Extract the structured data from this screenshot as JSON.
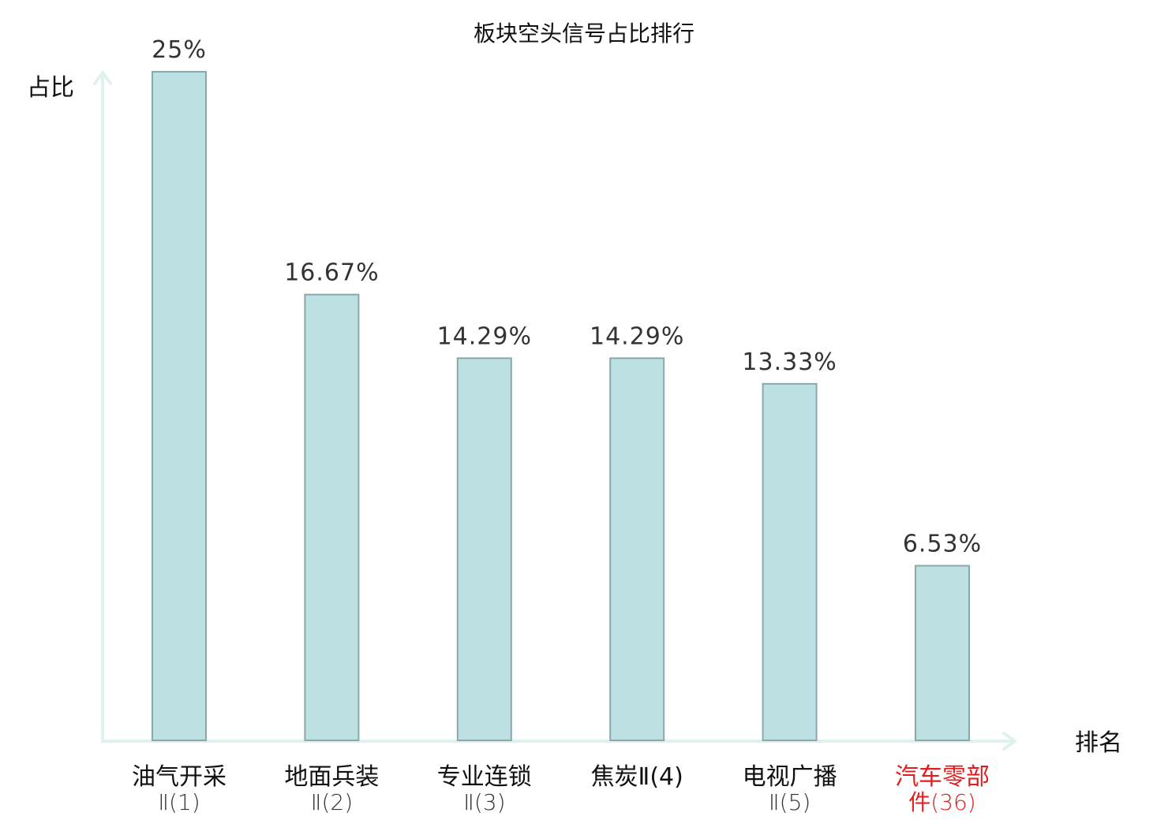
{
  "chart_data": {
    "type": "bar",
    "title": "板块空头信号占比排行",
    "ylabel": "占比",
    "xlabel": "排名",
    "ylim": [
      0,
      25
    ],
    "grid": false,
    "legend": "none",
    "categories": [
      {
        "main": "油气开采",
        "sub": "Ⅱ(1)",
        "label_lines": [
          "油气开采",
          "Ⅱ(1)"
        ],
        "highlight": false
      },
      {
        "main": "地面兵装",
        "sub": "Ⅱ(2)",
        "label_lines": [
          "地面兵装",
          "Ⅱ(2)"
        ],
        "highlight": false
      },
      {
        "main": "专业连锁",
        "sub": "Ⅱ(3)",
        "label_lines": [
          "专业连锁",
          "Ⅱ(3)"
        ],
        "highlight": false
      },
      {
        "main": "焦炭",
        "sub": "Ⅱ(4)",
        "label_lines": [
          "焦炭Ⅱ(4)"
        ],
        "highlight": false
      },
      {
        "main": "电视广播",
        "sub": "Ⅱ(5)",
        "label_lines": [
          "电视广播",
          "Ⅱ(5)"
        ],
        "highlight": false
      },
      {
        "main": "汽车零部件",
        "sub": "(36)",
        "label_lines": [
          "汽车零部",
          "件(36)"
        ],
        "highlight": true
      }
    ],
    "values": [
      25,
      16.67,
      14.29,
      14.29,
      13.33,
      6.53
    ],
    "value_labels": [
      "25%",
      "16.67%",
      "14.29%",
      "14.29%",
      "13.33%",
      "6.53%"
    ]
  },
  "colors": {
    "bar_fill": "#bde0e3",
    "bar_stroke": "#8aa8aa",
    "axis": "#dff1ee",
    "highlight_text": "#e11d1d"
  }
}
